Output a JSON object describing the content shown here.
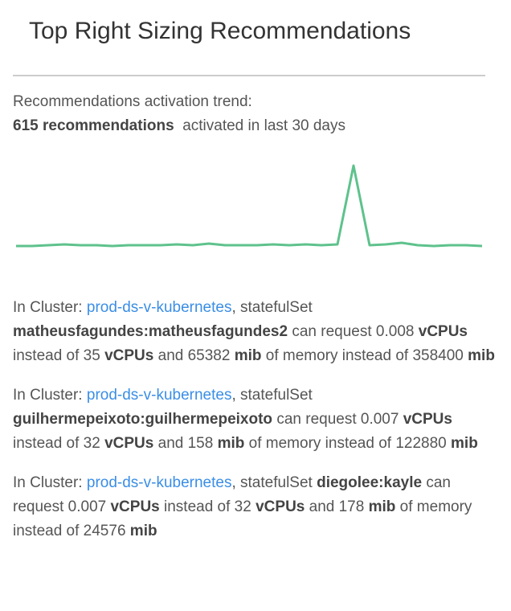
{
  "header": {
    "title": "Top Right Sizing Recommendations"
  },
  "trend": {
    "label": "Recommendations activation trend:",
    "count_text": "615 recommendations",
    "suffix": "activated in last 30 days",
    "chart": {
      "type": "line",
      "color": "#5ec28c",
      "values": [
        0,
        0,
        1,
        2,
        1,
        1,
        0,
        1,
        1,
        1,
        2,
        1,
        3,
        1,
        1,
        1,
        2,
        1,
        2,
        1,
        2,
        100,
        1,
        2,
        4,
        1,
        0,
        1,
        1,
        0
      ]
    }
  },
  "recommendations": [
    {
      "segments": [
        {
          "text": "In Cluster: ",
          "style": "normal"
        },
        {
          "text": "prod-ds-v-kubernetes",
          "style": "link"
        },
        {
          "text": ", statefulSet ",
          "style": "normal"
        },
        {
          "text": "matheusfagundes:matheusfagundes2",
          "style": "bold"
        },
        {
          "text": " can request 0.008 ",
          "style": "normal"
        },
        {
          "text": "vCPUs",
          "style": "bold"
        },
        {
          "text": " instead of 35 ",
          "style": "normal"
        },
        {
          "text": "vCPUs",
          "style": "bold"
        },
        {
          "text": " and 65382 ",
          "style": "normal"
        },
        {
          "text": "mib",
          "style": "bold"
        },
        {
          "text": " of memory instead of 358400 ",
          "style": "normal"
        },
        {
          "text": "mib",
          "style": "bold"
        }
      ]
    },
    {
      "segments": [
        {
          "text": "In Cluster: ",
          "style": "normal"
        },
        {
          "text": "prod-ds-v-kubernetes",
          "style": "link"
        },
        {
          "text": ", statefulSet ",
          "style": "normal"
        },
        {
          "text": "guilhermepeixoto:guilhermepeixoto",
          "style": "bold"
        },
        {
          "text": " can request 0.007 ",
          "style": "normal"
        },
        {
          "text": "vCPUs",
          "style": "bold"
        },
        {
          "text": " instead of 32 ",
          "style": "normal"
        },
        {
          "text": "vCPUs",
          "style": "bold"
        },
        {
          "text": " and 158 ",
          "style": "normal"
        },
        {
          "text": "mib",
          "style": "bold"
        },
        {
          "text": " of memory instead of 122880 ",
          "style": "normal"
        },
        {
          "text": "mib",
          "style": "bold"
        }
      ]
    },
    {
      "segments": [
        {
          "text": "In Cluster: ",
          "style": "normal"
        },
        {
          "text": "prod-ds-v-kubernetes",
          "style": "link"
        },
        {
          "text": ", statefulSet ",
          "style": "normal"
        },
        {
          "text": "diegolee:kayle",
          "style": "bold"
        },
        {
          "text": " can request 0.007 ",
          "style": "normal"
        },
        {
          "text": "vCPUs",
          "style": "bold"
        },
        {
          "text": " instead of 32 ",
          "style": "normal"
        },
        {
          "text": "vCPUs",
          "style": "bold"
        },
        {
          "text": " and 178 ",
          "style": "normal"
        },
        {
          "text": "mib",
          "style": "bold"
        },
        {
          "text": " of memory instead of 24576 ",
          "style": "normal"
        },
        {
          "text": "mib",
          "style": "bold"
        }
      ]
    }
  ]
}
